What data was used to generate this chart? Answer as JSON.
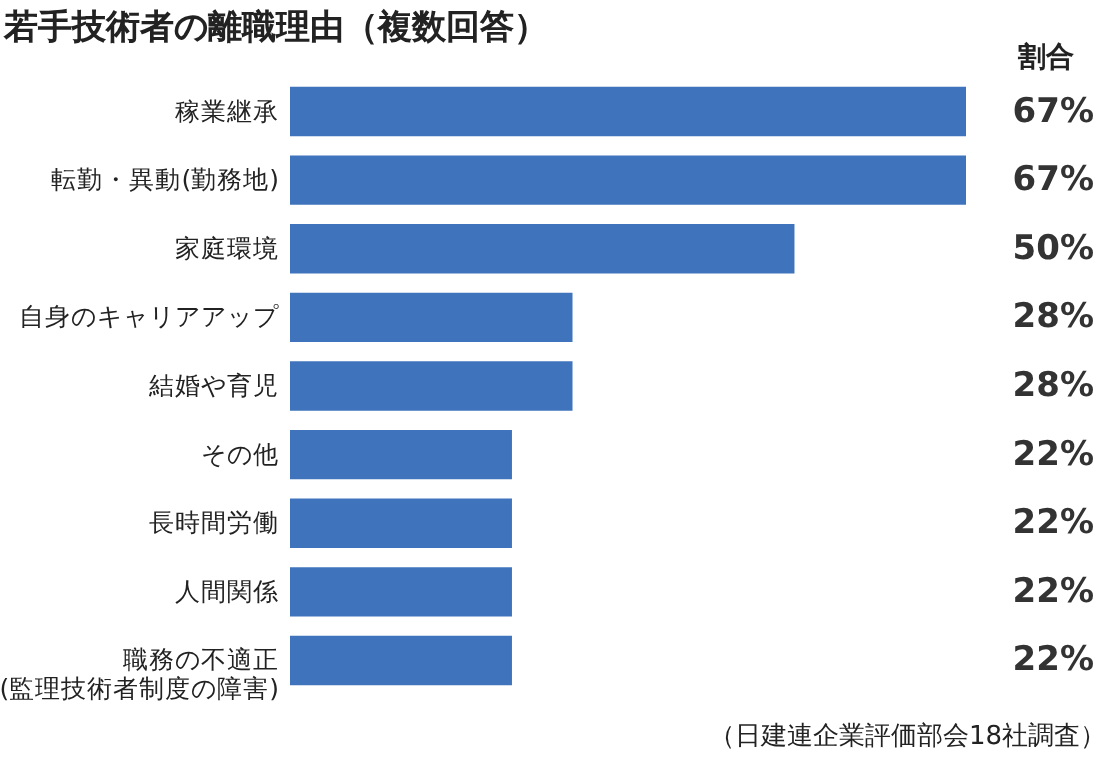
{
  "chart_data": {
    "type": "bar",
    "orientation": "horizontal",
    "title": "若手技術者の離職理由（複数回答）",
    "categories": [
      "稼業継承",
      "転勤・異動(勤務地)",
      "家庭環境",
      "自身のキャリアアップ",
      "結婚や育児",
      "その他",
      "長時間労働",
      "人間関係",
      "職務の不適正\n(監理技術者制度の障害)"
    ],
    "values": [
      67,
      67,
      50,
      28,
      28,
      22,
      22,
      22,
      22
    ],
    "value_labels": [
      "67%",
      "67%",
      "50%",
      "28%",
      "28%",
      "22%",
      "22%",
      "22%",
      "22%"
    ],
    "color": "#3f74bd",
    "grid": false,
    "annotations": [
      "割合",
      "（日建連企業評価部会18社調査）"
    ]
  }
}
